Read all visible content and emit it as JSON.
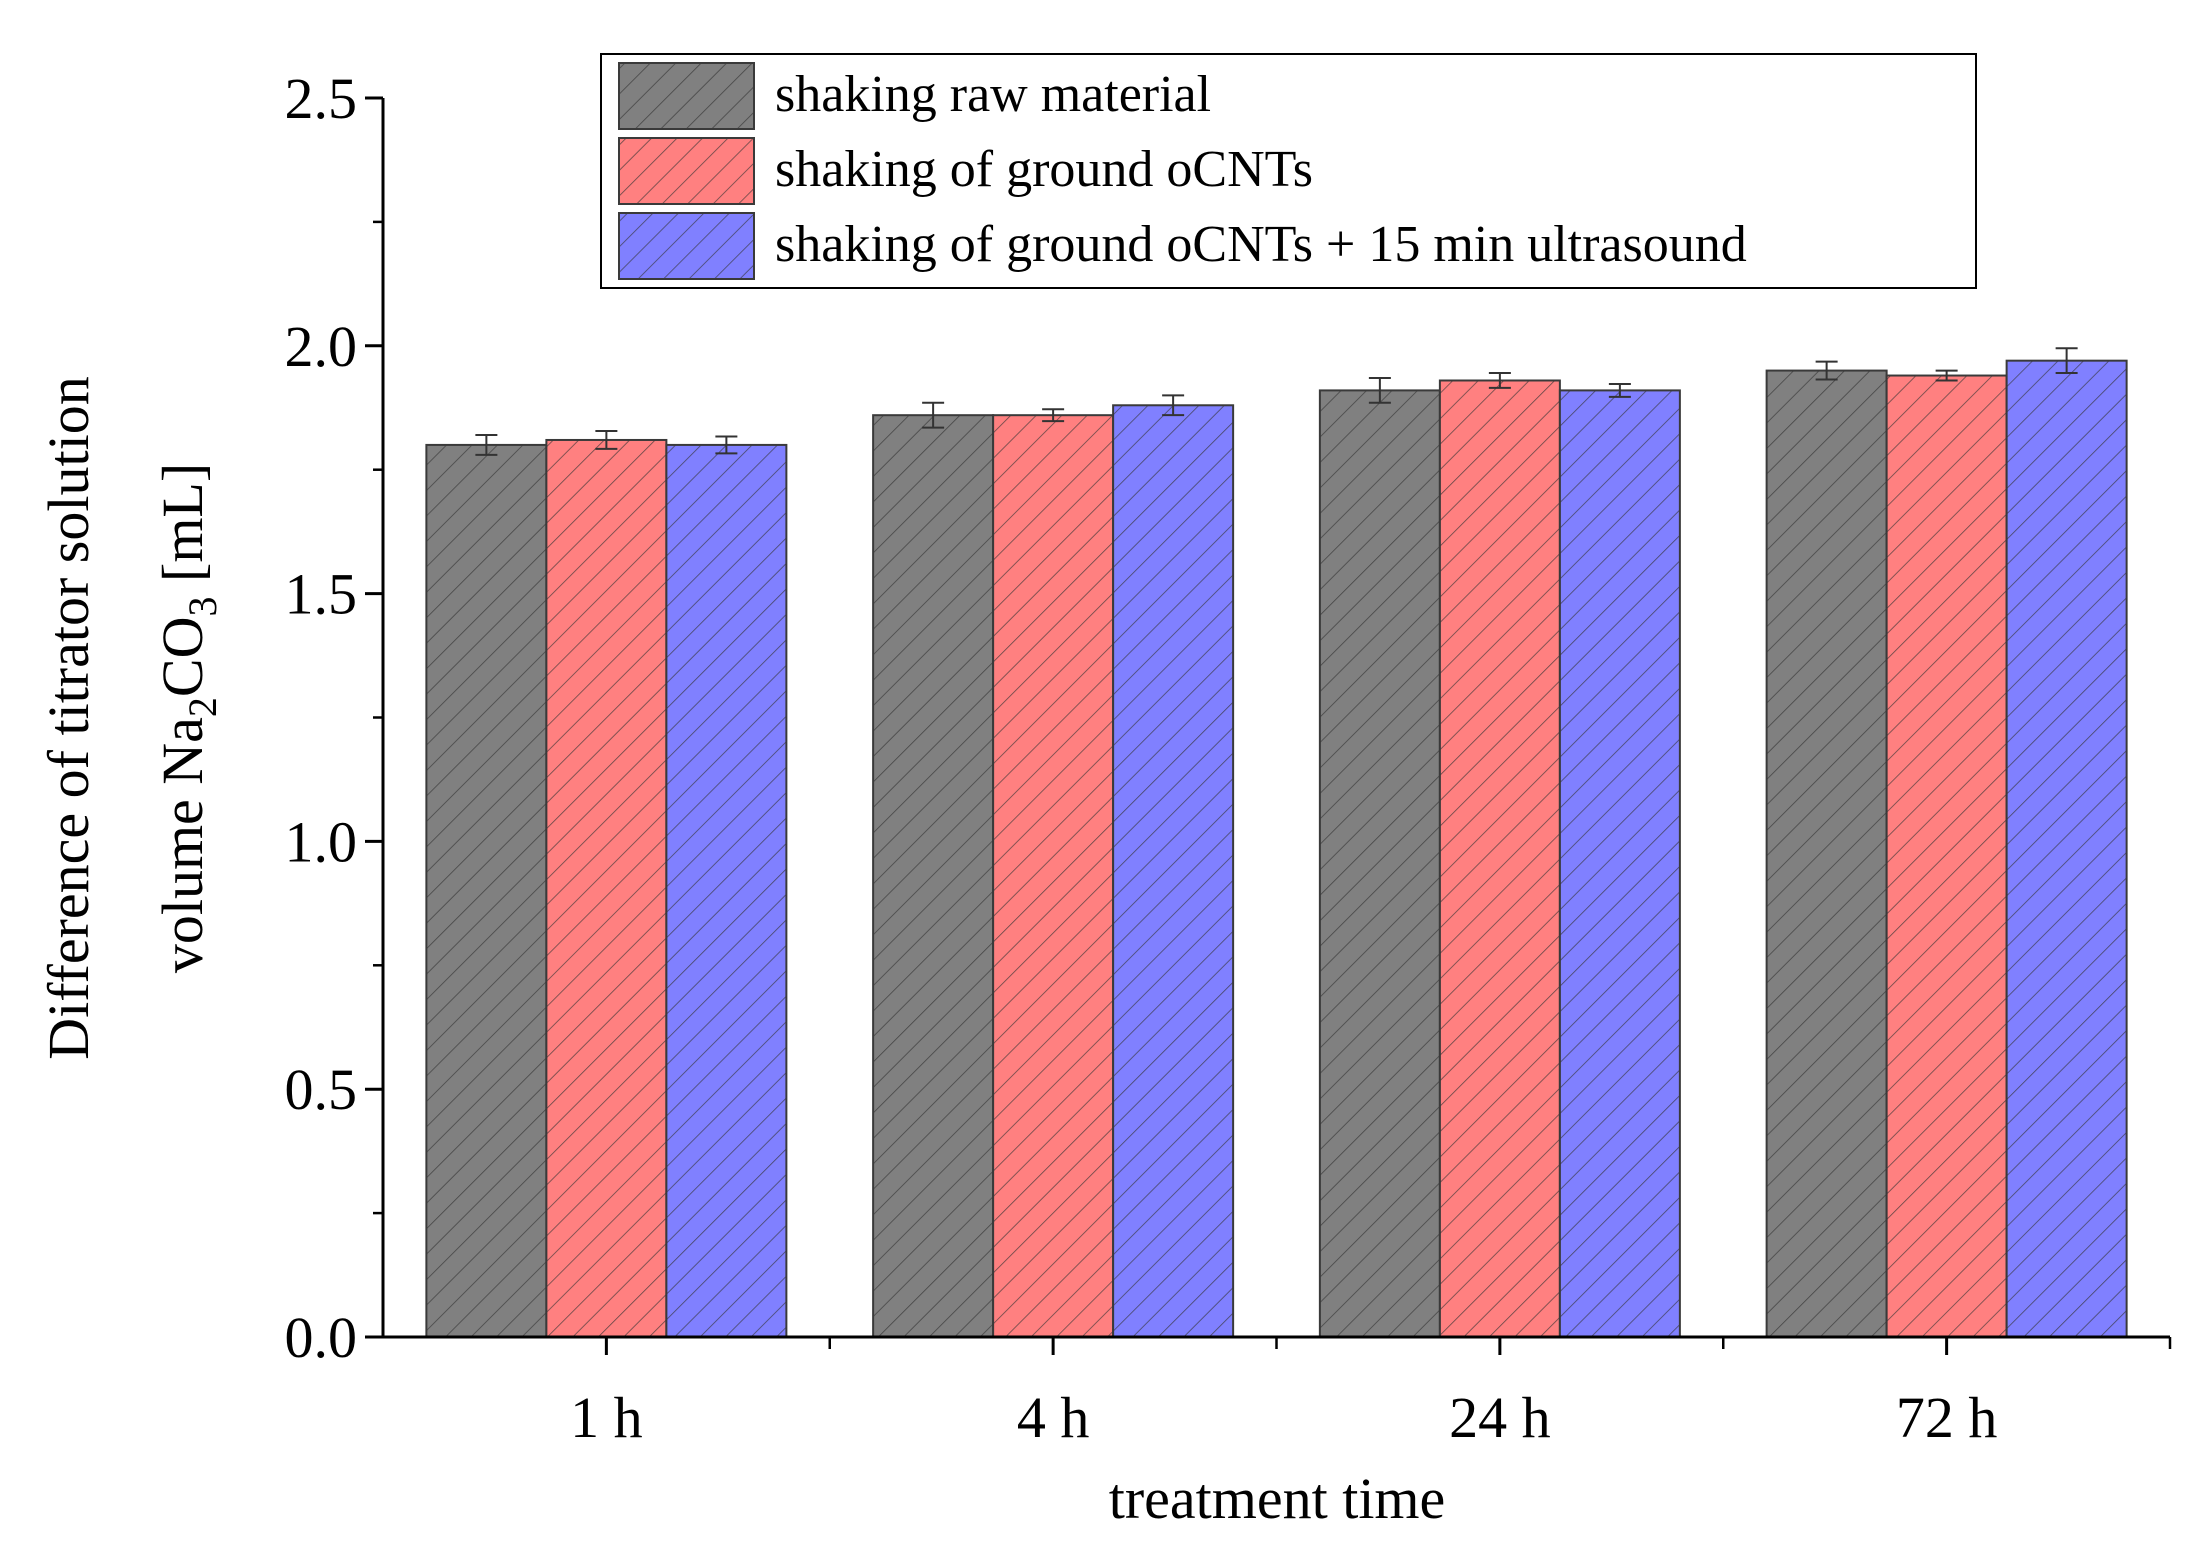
{
  "chart_data": {
    "type": "bar",
    "categories": [
      "1 h",
      "4 h",
      "24 h",
      "72 h"
    ],
    "series": [
      {
        "name": "shaking raw material",
        "values": [
          1.8,
          1.86,
          1.91,
          1.95
        ],
        "errors": [
          0.02,
          0.025,
          0.025,
          0.018
        ],
        "color": "#808080"
      },
      {
        "name": "shaking of ground oCNTs",
        "values": [
          1.81,
          1.86,
          1.93,
          1.94
        ],
        "errors": [
          0.018,
          0.012,
          0.015,
          0.01
        ],
        "color": "#ff8080"
      },
      {
        "name": "shaking of ground oCNTs + 15 min ultrasound",
        "values": [
          1.8,
          1.88,
          1.91,
          1.97
        ],
        "errors": [
          0.017,
          0.02,
          0.013,
          0.025
        ],
        "color": "#8080ff"
      }
    ],
    "xlabel": "treatment time",
    "ylabel_line1": "Difference of titrator solution",
    "ylabel_line2_prefix": "volume Na",
    "ylabel_sub1": "2",
    "ylabel_mid": "CO",
    "ylabel_sub2": "3",
    "ylabel_suffix": " [mL]",
    "ylim": [
      0,
      2.5
    ],
    "yticks": [
      "0.0",
      "0.5",
      "1.0",
      "1.5",
      "2.0",
      "2.5"
    ],
    "ytick_values": [
      0,
      0.5,
      1.0,
      1.5,
      2.0,
      2.5
    ],
    "grid": false,
    "legend_position": "top-right",
    "pattern": "diagonal-hatch"
  }
}
